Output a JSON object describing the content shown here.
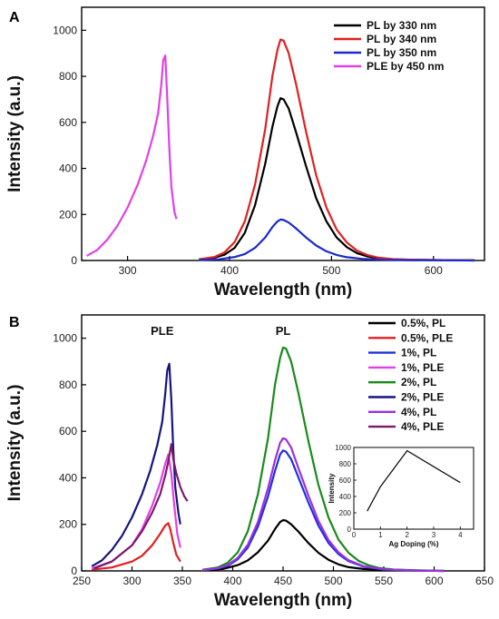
{
  "chart_data": [
    {
      "panel_label": "A",
      "type": "line",
      "title": "",
      "xlabel": "Wavelength (nm)",
      "ylabel": "Intensity (a.u.)",
      "xlim": [
        255,
        650
      ],
      "ylim": [
        0,
        1100
      ],
      "xticks": [
        300,
        400,
        500,
        600
      ],
      "yticks": [
        0,
        200,
        400,
        600,
        800,
        1000
      ],
      "legend_position": "top-right",
      "series": [
        {
          "name": "PL by 330 nm",
          "color": "#000000",
          "x": [
            370,
            385,
            395,
            405,
            415,
            425,
            435,
            442,
            447,
            450,
            453,
            458,
            465,
            475,
            485,
            495,
            505,
            515,
            525,
            535,
            545,
            560,
            580,
            600,
            620,
            640
          ],
          "y": [
            5,
            12,
            25,
            55,
            120,
            240,
            420,
            580,
            670,
            705,
            700,
            660,
            560,
            410,
            270,
            170,
            100,
            58,
            32,
            18,
            10,
            5,
            3,
            2,
            1,
            1
          ]
        },
        {
          "name": "PL by 340 nm",
          "color": "#e02020",
          "x": [
            370,
            385,
            395,
            405,
            415,
            425,
            435,
            442,
            447,
            450,
            453,
            458,
            465,
            475,
            485,
            495,
            505,
            515,
            525,
            535,
            545,
            560,
            580,
            600,
            620,
            640
          ],
          "y": [
            5,
            15,
            35,
            80,
            170,
            330,
            570,
            800,
            915,
            960,
            955,
            900,
            770,
            560,
            370,
            230,
            135,
            78,
            43,
            24,
            13,
            6,
            3,
            2,
            1,
            1
          ]
        },
        {
          "name": "PL by 350 nm",
          "color": "#1a2acc",
          "x": [
            370,
            390,
            405,
            415,
            425,
            435,
            442,
            447,
            450,
            453,
            458,
            465,
            475,
            485,
            495,
            505,
            515,
            530,
            550,
            580,
            610,
            640
          ],
          "y": [
            2,
            5,
            15,
            28,
            55,
            100,
            145,
            170,
            178,
            176,
            165,
            140,
            100,
            65,
            40,
            24,
            14,
            7,
            3,
            1,
            1,
            0
          ]
        },
        {
          "name": "PLE by 450 nm",
          "color": "#e040e8",
          "x": [
            260,
            270,
            280,
            290,
            300,
            310,
            318,
            325,
            330,
            333,
            335,
            337,
            339,
            341,
            343,
            346,
            348
          ],
          "y": [
            20,
            45,
            90,
            150,
            230,
            330,
            430,
            540,
            640,
            760,
            870,
            890,
            700,
            480,
            320,
            210,
            180
          ]
        }
      ]
    },
    {
      "panel_label": "B",
      "type": "line",
      "title": "",
      "xlabel": "Wavelength (nm)",
      "ylabel": "Intensity (a.u.)",
      "xlim": [
        250,
        650
      ],
      "ylim": [
        0,
        1100
      ],
      "xticks": [
        250,
        300,
        350,
        400,
        450,
        500,
        550,
        600,
        650
      ],
      "yticks": [
        0,
        200,
        400,
        600,
        800,
        1000
      ],
      "legend_position": "top-right",
      "annotations": [
        {
          "text": "PLE",
          "x": 330,
          "y": 1030
        },
        {
          "text": "PL",
          "x": 450,
          "y": 1030
        }
      ],
      "series": [
        {
          "name": "0.5%, PL",
          "color": "#000000",
          "x": [
            370,
            390,
            405,
            415,
            425,
            435,
            442,
            447,
            450,
            453,
            458,
            465,
            475,
            485,
            495,
            505,
            515,
            530,
            550,
            580,
            610
          ],
          "y": [
            2,
            8,
            25,
            45,
            80,
            130,
            180,
            210,
            218,
            216,
            200,
            170,
            120,
            78,
            48,
            28,
            16,
            8,
            3,
            1,
            0
          ]
        },
        {
          "name": "0.5%, PLE",
          "color": "#e02020",
          "x": [
            260,
            280,
            300,
            310,
            320,
            328,
            333,
            336,
            338,
            341,
            344,
            348
          ],
          "y": [
            5,
            15,
            40,
            65,
            110,
            160,
            195,
            205,
            180,
            120,
            70,
            40
          ]
        },
        {
          "name": "1%, PL",
          "color": "#2030dd",
          "x": [
            370,
            385,
            395,
            405,
            415,
            425,
            435,
            442,
            447,
            450,
            453,
            458,
            465,
            475,
            485,
            495,
            505,
            515,
            530,
            550,
            580,
            610
          ],
          "y": [
            3,
            10,
            22,
            50,
            100,
            190,
            320,
            430,
            500,
            518,
            512,
            480,
            405,
            295,
            195,
            120,
            72,
            42,
            18,
            6,
            2,
            0
          ]
        },
        {
          "name": "1%, PLE",
          "color": "#e040e8",
          "x": [
            260,
            280,
            300,
            310,
            320,
            328,
            333,
            336,
            339,
            342,
            345,
            348
          ],
          "y": [
            10,
            40,
            110,
            180,
            280,
            380,
            460,
            500,
            420,
            280,
            160,
            100
          ]
        },
        {
          "name": "2%, PL",
          "color": "#1a8a1a",
          "x": [
            370,
            385,
            395,
            405,
            415,
            425,
            435,
            442,
            447,
            450,
            453,
            458,
            465,
            475,
            485,
            495,
            505,
            515,
            525,
            535,
            545,
            560,
            580,
            600
          ],
          "y": [
            5,
            15,
            35,
            80,
            170,
            330,
            570,
            800,
            915,
            960,
            955,
            900,
            770,
            560,
            370,
            230,
            135,
            78,
            43,
            24,
            13,
            6,
            3,
            1
          ]
        },
        {
          "name": "2%, PLE",
          "color": "#141480",
          "x": [
            260,
            270,
            280,
            290,
            300,
            310,
            318,
            325,
            330,
            333,
            335,
            337,
            339,
            341,
            343,
            346,
            348
          ],
          "y": [
            20,
            45,
            90,
            150,
            230,
            330,
            430,
            540,
            640,
            760,
            860,
            890,
            740,
            520,
            360,
            250,
            200
          ]
        },
        {
          "name": "4%, PL",
          "color": "#9a30e0",
          "x": [
            370,
            385,
            395,
            405,
            415,
            425,
            435,
            442,
            447,
            450,
            453,
            458,
            465,
            475,
            485,
            495,
            505,
            515,
            530,
            550,
            580,
            610
          ],
          "y": [
            3,
            11,
            25,
            56,
            112,
            210,
            355,
            475,
            550,
            570,
            565,
            530,
            445,
            325,
            215,
            133,
            80,
            46,
            20,
            7,
            2,
            0
          ]
        },
        {
          "name": "4%, PLE",
          "color": "#7a1a6a",
          "x": [
            262,
            280,
            300,
            310,
            320,
            328,
            333,
            336,
            339,
            341,
            344,
            348,
            352,
            355
          ],
          "y": [
            10,
            40,
            110,
            170,
            250,
            330,
            410,
            470,
            545,
            480,
            420,
            360,
            320,
            300
          ]
        }
      ],
      "inset": {
        "type": "line",
        "xlabel": "Ag Doping (%)",
        "ylabel": "Intensity",
        "xlim": [
          0,
          4.5
        ],
        "ylim": [
          0,
          1000
        ],
        "xticks": [
          0,
          1,
          2,
          3,
          4
        ],
        "yticks": [
          0,
          200,
          400,
          600,
          800,
          1000
        ],
        "x": [
          0.5,
          1,
          2,
          4
        ],
        "y": [
          220,
          520,
          960,
          570
        ],
        "color": "#111111"
      }
    }
  ]
}
